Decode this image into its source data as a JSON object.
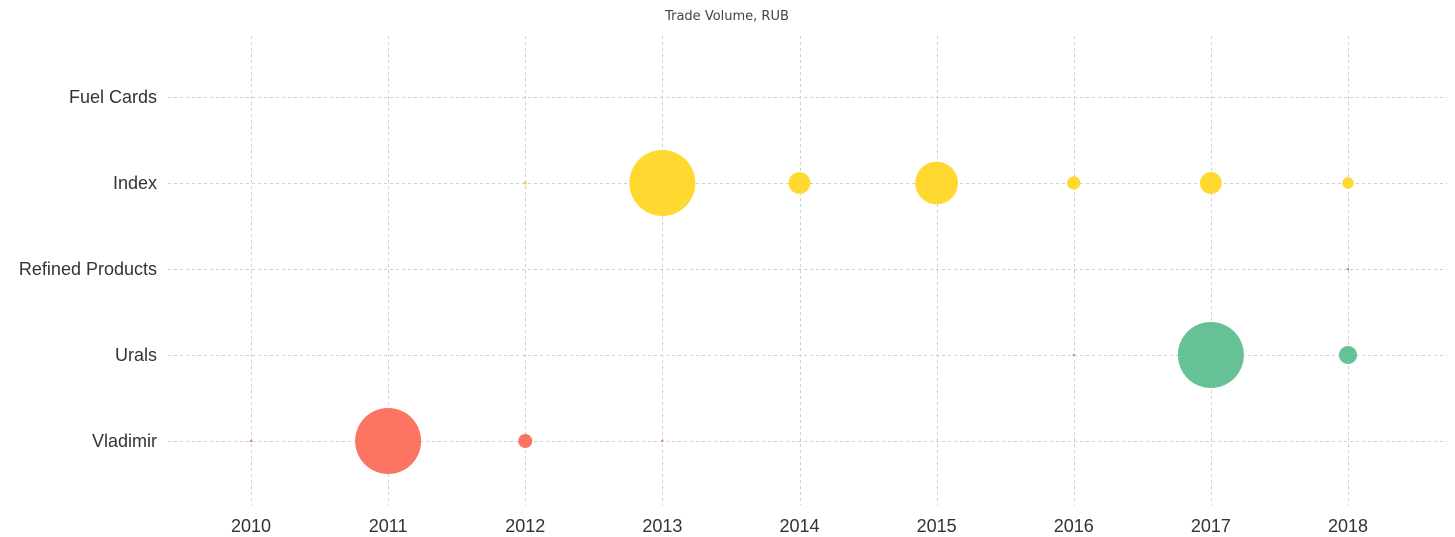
{
  "chart_data": {
    "type": "scatter",
    "title": "Trade Volume, RUB",
    "xlabel": "",
    "ylabel": "",
    "x_categories": [
      "2010",
      "2011",
      "2012",
      "2013",
      "2014",
      "2015",
      "2016",
      "2017",
      "2018"
    ],
    "y_categories": [
      "Fuel Cards",
      "Index",
      "Refined Products",
      "Urals",
      "Vladimir"
    ],
    "grid": true,
    "legend": "none",
    "size_encoding": "bubble area proportional to relative trade volume (max = 100)",
    "series": [
      {
        "name": "Fuel Cards",
        "color": "#8da0cb",
        "points": []
      },
      {
        "name": "Index",
        "color": "#ffd92f",
        "points": [
          {
            "x": "2012",
            "size": 0.25
          },
          {
            "x": "2013",
            "size": 100
          },
          {
            "x": "2014",
            "size": 11
          },
          {
            "x": "2015",
            "size": 42
          },
          {
            "x": "2016",
            "size": 4
          },
          {
            "x": "2017",
            "size": 11
          },
          {
            "x": "2018",
            "size": 3
          }
        ]
      },
      {
        "name": "Refined Products",
        "color": "#8da0cb",
        "points": [
          {
            "x": "2018",
            "size": 0.06
          }
        ]
      },
      {
        "name": "Urals",
        "color": "#66c296",
        "points": [
          {
            "x": "2016",
            "size": 0.06
          },
          {
            "x": "2017",
            "size": 100
          },
          {
            "x": "2018",
            "size": 7.5
          }
        ]
      },
      {
        "name": "Vladimir",
        "color": "#fc7563",
        "points": [
          {
            "x": "2010",
            "size": 0.06
          },
          {
            "x": "2011",
            "size": 100
          },
          {
            "x": "2012",
            "size": 4.5
          },
          {
            "x": "2013",
            "size": 0.01
          }
        ]
      }
    ]
  }
}
